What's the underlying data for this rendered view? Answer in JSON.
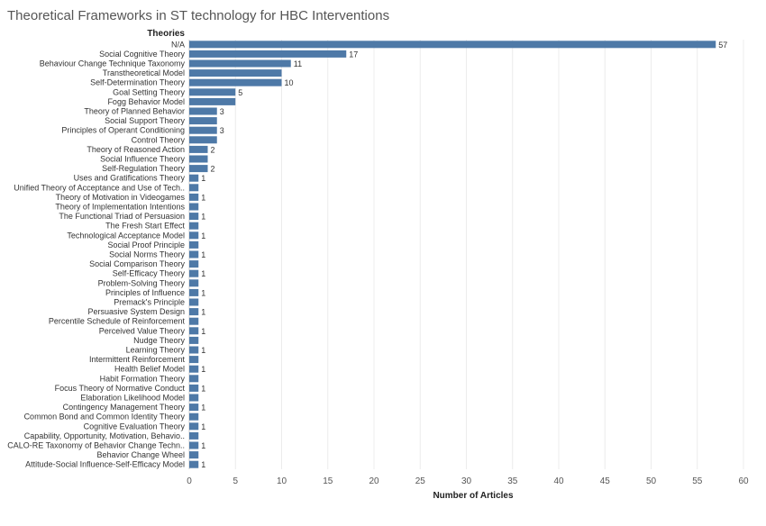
{
  "chart_data": {
    "type": "bar",
    "orientation": "horizontal",
    "title": "Theoretical Frameworks in ST technology for HBC Interventions",
    "row_header": "Theories",
    "xlabel": "Number of Articles",
    "xlim": [
      0,
      60
    ],
    "xticks": [
      0,
      5,
      10,
      15,
      20,
      25,
      30,
      35,
      40,
      45,
      50,
      55,
      60
    ],
    "grid": true,
    "bar_color": "#4e79a7",
    "categories": [
      "N/A",
      "Social Cognitive Theory",
      "Behaviour Change Technique Taxonomy",
      "Transtheoretical Model",
      "Self-Determination Theory",
      "Goal Setting Theory",
      "Fogg Behavior Model",
      "Theory of Planned Behavior",
      "Social Support Theory",
      "Principles of Operant Conditioning",
      "Control Theory",
      "Theory of Reasoned Action",
      "Social Influence Theory",
      "Self-Regulation Theory",
      "Uses and Gratifications Theory",
      "Unified Theory of Acceptance and Use of Tech..",
      "Theory of Motivation in Videogames",
      "Theory of Implementation Intentions",
      "The Functional Triad of Persuasion",
      "The Fresh Start Effect",
      "Technological Acceptance Model",
      "Social Proof Principle",
      "Social Norms Theory",
      "Social Comparison Theory",
      "Self-Efficacy Theory",
      "Problem-Solving Theory",
      "Principles of Influence",
      "Premack's Principle",
      "Persuasive System Design",
      "Percentile Schedule of Reinforcement",
      "Perceived Value Theory",
      "Nudge Theory",
      "Learning Theory",
      "Intermittent Reinforcement",
      "Health Belief Model",
      "Habit Formation Theory",
      "Focus Theory of Normative Conduct",
      "Elaboration Likelihood Model",
      "Contingency  Management Theory",
      "Common Bond and Common Identity Theory",
      "Cognitive Evaluation Theory",
      "Capability, Opportunity, Motivation, Behavio..",
      "CALO-RE Taxonomy of Behavior Change Techn..",
      "Behavior Change Wheel",
      "Attitude-Social Influence-Self-Efficacy Model"
    ],
    "values": [
      57,
      17,
      11,
      10,
      10,
      5,
      5,
      3,
      3,
      3,
      3,
      2,
      2,
      2,
      1,
      1,
      1,
      1,
      1,
      1,
      1,
      1,
      1,
      1,
      1,
      1,
      1,
      1,
      1,
      1,
      1,
      1,
      1,
      1,
      1,
      1,
      1,
      1,
      1,
      1,
      1,
      1,
      1,
      1,
      1
    ],
    "data_labels": [
      "57",
      "17",
      "11",
      "",
      "10",
      "5",
      "",
      "3",
      "",
      "3",
      "",
      "2",
      "",
      "2",
      "1",
      "",
      "1",
      "",
      "1",
      "",
      "1",
      "",
      "1",
      "",
      "1",
      "",
      "1",
      "",
      "1",
      "",
      "1",
      "",
      "1",
      "",
      "1",
      "",
      "1",
      "",
      "1",
      "",
      "1",
      "",
      "1",
      "",
      "1"
    ]
  }
}
